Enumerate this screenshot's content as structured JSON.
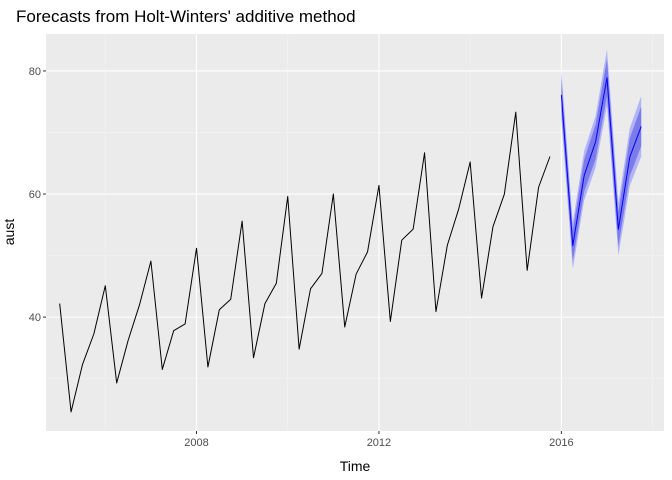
{
  "chart_data": {
    "type": "line",
    "title": "Forecasts from Holt-Winters' additive method",
    "xlabel": "Time",
    "ylabel": "aust",
    "xlim": [
      2004.7,
      2018.25
    ],
    "ylim": [
      21.5,
      86
    ],
    "x_ticks": [
      {
        "value": 2008,
        "label": "2008"
      },
      {
        "value": 2012,
        "label": "2012"
      },
      {
        "value": 2016,
        "label": "2016"
      }
    ],
    "y_ticks": [
      {
        "value": 40,
        "label": "40"
      },
      {
        "value": 60,
        "label": "60"
      },
      {
        "value": 80,
        "label": "80"
      }
    ],
    "grid": true,
    "colors": {
      "panel": "#ebebeb",
      "grid_major": "#ffffff",
      "grid_minor": "#f4f4f4",
      "observed_line": "#000000",
      "forecast_line": "#0000ff",
      "band_95": "#b3b3f7",
      "band_80": "#7b7bea",
      "tick": "#333333"
    },
    "series": [
      {
        "role": "observed",
        "x": [
          2005.0,
          2005.25,
          2005.5,
          2005.75,
          2006.0,
          2006.25,
          2006.5,
          2006.75,
          2007.0,
          2007.25,
          2007.5,
          2007.75,
          2008.0,
          2008.25,
          2008.5,
          2008.75,
          2009.0,
          2009.25,
          2009.5,
          2009.75,
          2010.0,
          2010.25,
          2010.5,
          2010.75,
          2011.0,
          2011.25,
          2011.5,
          2011.75,
          2012.0,
          2012.25,
          2012.5,
          2012.75,
          2013.0,
          2013.25,
          2013.5,
          2013.75,
          2014.0,
          2014.25,
          2014.5,
          2014.75,
          2015.0,
          2015.25,
          2015.5,
          2015.75
        ],
        "values": [
          42.2,
          24.6,
          32.3,
          37.3,
          45.1,
          29.3,
          36.2,
          42.0,
          49.1,
          31.5,
          37.8,
          38.9,
          51.2,
          31.9,
          41.2,
          42.9,
          55.6,
          33.4,
          42.2,
          45.5,
          59.6,
          34.8,
          44.6,
          47.1,
          60.0,
          38.4,
          47.0,
          50.6,
          61.4,
          39.3,
          52.5,
          54.3,
          66.7,
          40.9,
          51.7,
          57.6,
          65.2,
          43.1,
          54.7,
          60.0,
          73.3,
          47.6,
          61.1,
          66.1
        ]
      },
      {
        "role": "forecast",
        "x": [
          2016.0,
          2016.25,
          2016.5,
          2016.75,
          2017.0,
          2017.25,
          2017.5,
          2017.75
        ],
        "values": [
          76.1,
          51.6,
          63.0,
          68.5,
          78.9,
          54.3,
          66.0,
          71.0
        ],
        "lo80": [
          73.5,
          49.1,
          60.4,
          65.7,
          75.9,
          51.5,
          62.9,
          67.8
        ],
        "hi80": [
          78.7,
          54.1,
          65.6,
          71.3,
          81.9,
          57.1,
          69.1,
          74.2
        ],
        "lo95": [
          72.1,
          47.8,
          59.0,
          64.3,
          74.3,
          50.0,
          61.3,
          66.1
        ],
        "hi95": [
          80.1,
          55.4,
          67.0,
          72.7,
          83.5,
          58.6,
          70.7,
          75.9
        ]
      }
    ]
  }
}
